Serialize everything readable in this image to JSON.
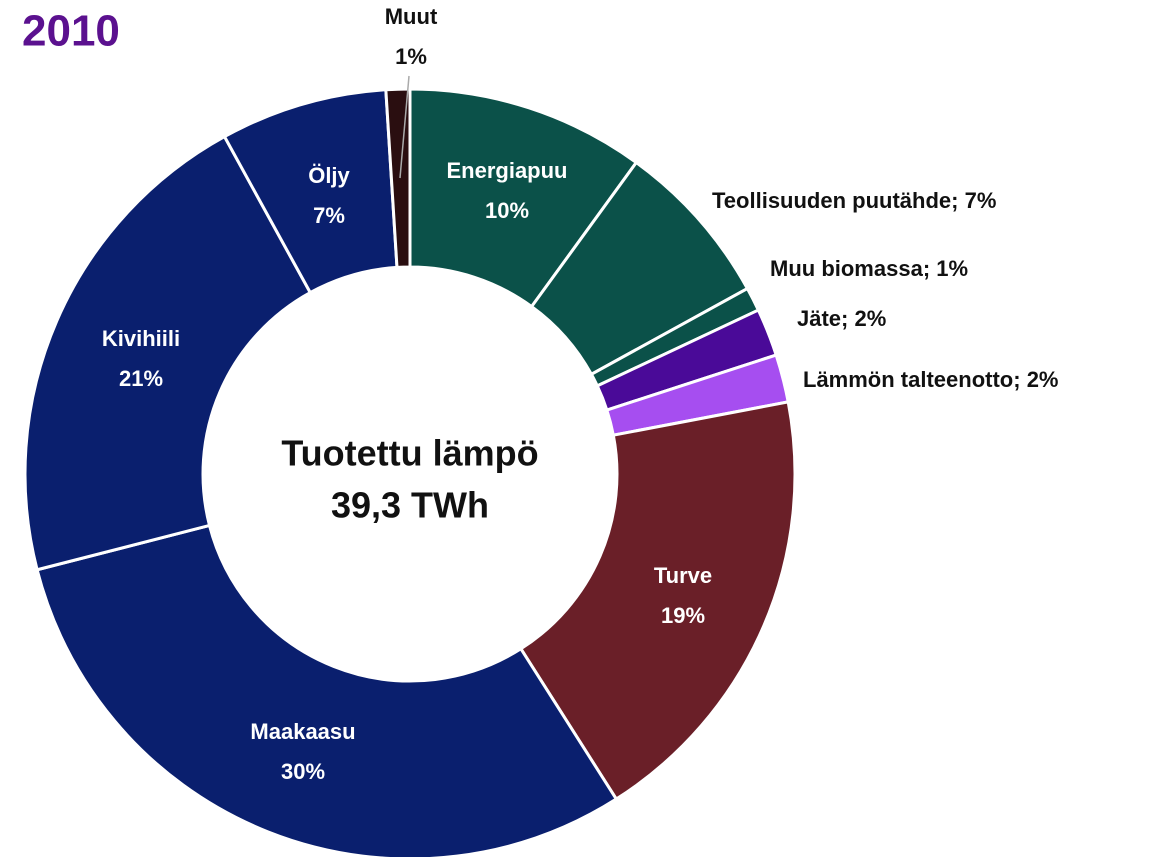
{
  "chart_data": {
    "type": "donut",
    "title": "2010",
    "center_label": [
      "Tuotettu lämpö",
      "39,3 TWh"
    ],
    "categories": [
      "Energiapuu",
      "Teollisuuden puutähde",
      "Muu biomassa",
      "Jäte",
      "Lämmön talteenotto",
      "Turve",
      "Maakaasu",
      "Kivihiili",
      "Öljy",
      "Muut"
    ],
    "values": [
      10,
      7,
      1,
      2,
      2,
      19,
      30,
      21,
      7,
      1
    ],
    "value_labels": [
      "10%",
      "7%",
      "1%",
      "2%",
      "2%",
      "19%",
      "30%",
      "21%",
      "7%",
      "1%"
    ],
    "label_separator": "; ",
    "colors": [
      "#0b5149",
      "#0b5149",
      "#0b5149",
      "#4a0a98",
      "#a64ef0",
      "#6a1f28",
      "#0a1f6e",
      "#0a1f6e",
      "#0a1f6e",
      "#2a0e10"
    ]
  }
}
